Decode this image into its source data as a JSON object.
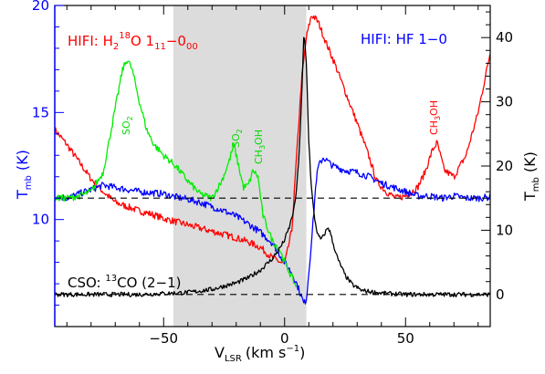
{
  "chart_data": {
    "type": "line",
    "xlabel": {
      "main": "V",
      "sub": "LSR",
      "unit": "(km s",
      "sup": "−1",
      "close": ")"
    },
    "ylabel_left": {
      "main": "T",
      "sub": "mb",
      "unit": "(K)"
    },
    "ylabel_right": {
      "main": "T",
      "sub": "mb",
      "unit": "(K)"
    },
    "xlim": [
      -95,
      85
    ],
    "ylim_left": [
      5,
      20
    ],
    "ylim_right": [
      -5,
      45
    ],
    "x_ticks": [
      -50,
      0,
      50
    ],
    "y_ticks_left": [
      10,
      15,
      20
    ],
    "y_ticks_right": [
      0,
      10,
      20,
      30,
      40
    ],
    "shaded_region": [
      -46,
      9
    ],
    "hlines": [
      {
        "axis": "left",
        "y": 11.0
      },
      {
        "axis": "right",
        "y": 0.0
      }
    ],
    "labels": {
      "hifi_h2o_1": "HIFI: H",
      "hifi_h2o_2": "2",
      "hifi_h2o_3": "18",
      "hifi_h2o_4": "O  1",
      "hifi_h2o_5": "11",
      "hifi_h2o_6": "−0",
      "hifi_h2o_7": "00",
      "hifi_hf": "HIFI:  HF  1−0",
      "cso_1": "CSO:  ",
      "cso_2": "13",
      "cso_3": "CO  (2−1)",
      "so2_a": "SO",
      "so2_a_sub": "2",
      "so2_b": "SO",
      "so2_b_sub": "2",
      "ch3oh_a": "CH",
      "ch3oh_a_sub": "3",
      "ch3oh_a_end": "OH",
      "ch3oh_b": "CH",
      "ch3oh_b_sub": "3",
      "ch3oh_b_end": "OH"
    },
    "colors": {
      "h2o18": "#ff0000",
      "hf": "#0000ff",
      "so2_ch3oh_green": "#00ee00",
      "co13": "#000000",
      "shade": "#dcdcdc",
      "left_axis": "#0000ff"
    },
    "series": [
      {
        "name": "HIFI: H218O 1_11-0_00",
        "axis": "left",
        "color": "#ff0000",
        "x": [
          -95,
          -90,
          -85,
          -80,
          -75,
          -70,
          -65,
          -60,
          -55,
          -50,
          -45,
          -40,
          -35,
          -30,
          -25,
          -20,
          -15,
          -10,
          -5,
          0,
          3,
          5,
          7,
          9,
          11,
          12,
          14,
          17,
          20,
          25,
          30,
          35,
          38,
          42,
          46,
          50,
          55,
          58,
          61,
          63,
          66,
          70,
          75,
          80,
          85
        ],
        "y": [
          14.2,
          13.5,
          12.7,
          11.9,
          11.3,
          10.8,
          10.6,
          10.4,
          10.25,
          10.05,
          9.9,
          9.75,
          9.6,
          9.45,
          9.3,
          9.15,
          8.95,
          8.7,
          8.2,
          7.9,
          9.5,
          13.0,
          16.5,
          18.5,
          19.5,
          19.5,
          19.2,
          18.3,
          17.5,
          16.0,
          14.5,
          12.9,
          11.8,
          11.3,
          11.0,
          11.1,
          11.5,
          12.2,
          13.2,
          13.6,
          12.3,
          12.0,
          13.0,
          15.0,
          17.8
        ]
      },
      {
        "name": "HIFI: HF 1-0",
        "axis": "left",
        "color": "#0000ff",
        "x": [
          -95,
          -90,
          -85,
          -80,
          -75,
          -70,
          -65,
          -60,
          -55,
          -50,
          -45,
          -40,
          -35,
          -30,
          -25,
          -20,
          -15,
          -10,
          -5,
          0,
          3,
          5,
          7,
          8,
          9,
          10,
          12,
          13,
          14,
          16,
          18,
          20,
          25,
          30,
          35,
          40,
          45,
          50,
          55,
          60,
          65,
          70,
          75,
          80,
          85
        ],
        "y": [
          11.1,
          11.0,
          11.2,
          11.4,
          11.6,
          11.5,
          11.4,
          11.3,
          11.25,
          11.2,
          11.05,
          10.95,
          10.8,
          10.6,
          10.4,
          10.15,
          9.8,
          9.4,
          8.9,
          8.0,
          7.5,
          7.0,
          6.4,
          6.05,
          6.3,
          7.5,
          10.2,
          11.8,
          12.5,
          12.9,
          12.7,
          12.5,
          12.3,
          12.2,
          12.0,
          11.7,
          11.5,
          11.3,
          11.1,
          11.1,
          11.0,
          11.1,
          11.0,
          11.0,
          11.05
        ]
      },
      {
        "name": "SO2 / CH3OH",
        "axis": "left",
        "color": "#00ee00",
        "x": [
          -95,
          -90,
          -85,
          -80,
          -75,
          -72,
          -69,
          -67,
          -65,
          -63,
          -60,
          -57,
          -54,
          -50,
          -45,
          -40,
          -35,
          -30,
          -26,
          -23,
          -21,
          -19,
          -17,
          -15,
          -13,
          -11,
          -9,
          -7,
          -5,
          -2,
          0,
          3,
          5
        ],
        "y": [
          11.0,
          11.0,
          11.1,
          11.3,
          12.2,
          14.0,
          15.8,
          17.0,
          17.5,
          17.0,
          15.5,
          14.2,
          13.5,
          13.0,
          12.5,
          11.8,
          11.2,
          11.0,
          11.8,
          12.7,
          13.5,
          12.5,
          11.5,
          11.6,
          12.3,
          12.0,
          10.2,
          9.6,
          9.0,
          8.6,
          8.0,
          7.3,
          6.8
        ]
      },
      {
        "name": "CSO: 13CO (2-1)",
        "axis": "right",
        "color": "#000000",
        "x": [
          -95,
          -80,
          -60,
          -40,
          -30,
          -20,
          -15,
          -10,
          -5,
          -2,
          0,
          2,
          4,
          5,
          6,
          7,
          8,
          9,
          10,
          11,
          12,
          13,
          14,
          15,
          16,
          17,
          18,
          19,
          20,
          22,
          25,
          28,
          32,
          40,
          50,
          60,
          70,
          80,
          85
        ],
        "y": [
          0.0,
          0.0,
          0.0,
          0.3,
          0.8,
          1.8,
          2.6,
          3.8,
          5.6,
          7.2,
          8.5,
          10.5,
          13.5,
          16.5,
          22.0,
          30.0,
          41.0,
          36.0,
          24.0,
          17.0,
          13.0,
          10.5,
          9.0,
          8.6,
          9.0,
          9.8,
          10.5,
          9.5,
          8.0,
          5.5,
          3.0,
          1.5,
          0.6,
          0.2,
          0.0,
          0.0,
          0.0,
          0.0,
          0.0
        ]
      }
    ]
  }
}
